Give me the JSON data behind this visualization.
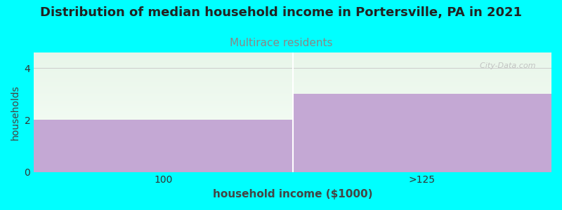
{
  "title": "Distribution of median household income in Portersville, PA in 2021",
  "subtitle": "Multirace residents",
  "categories": [
    "100",
    ">125"
  ],
  "values": [
    2,
    3
  ],
  "bar_color": "#c4a8d4",
  "xlabel": "household income ($1000)",
  "ylabel": "households",
  "ylim": [
    0,
    4.6
  ],
  "yticks": [
    0,
    2,
    4
  ],
  "background_color": "#00FFFF",
  "grad_top_color": "#e8f5e9",
  "grad_bot_color": "#f8fff8",
  "title_fontsize": 13,
  "subtitle_fontsize": 11,
  "subtitle_color": "#888888",
  "title_color": "#222222",
  "watermark": "  City-Data.com"
}
